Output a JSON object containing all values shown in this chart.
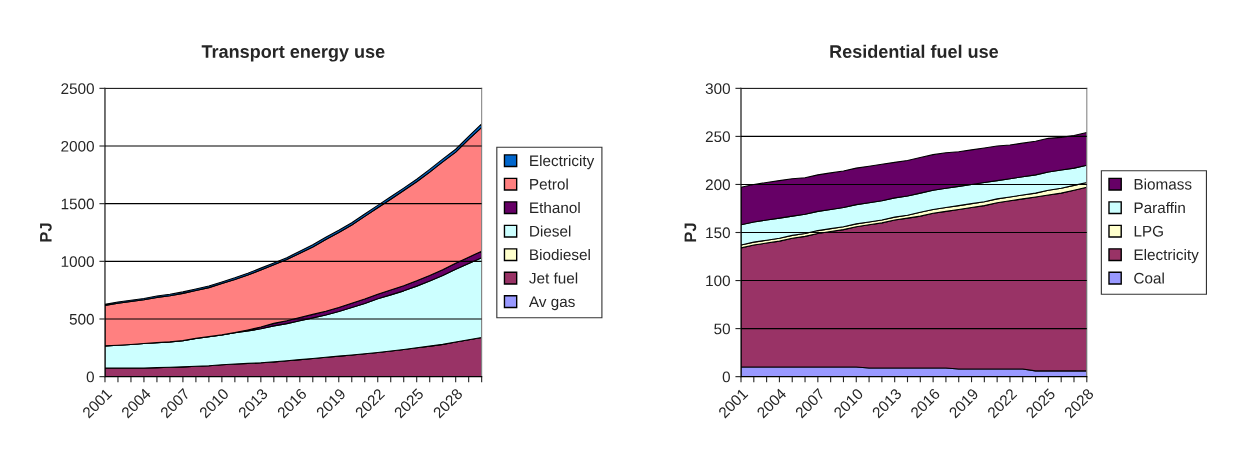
{
  "chart_data": [
    {
      "type": "area",
      "stacked": true,
      "title": "Transport energy use",
      "ylabel": "PJ",
      "ylim": [
        0,
        2500
      ],
      "yticks": [
        0,
        500,
        1000,
        1500,
        2000,
        2500
      ],
      "grid": "y",
      "legend": "right",
      "categories": [
        "2001",
        null,
        null,
        "2004",
        null,
        null,
        "2007",
        null,
        null,
        "2010",
        null,
        null,
        "2013",
        null,
        null,
        "2016",
        null,
        null,
        "2019",
        null,
        null,
        "2022",
        null,
        null,
        "2025",
        null,
        null,
        "2028",
        null,
        null
      ],
      "series": [
        {
          "name": "Av gas",
          "color": "#9999ff",
          "values": [
            null,
            null,
            null,
            null,
            null,
            null,
            null,
            null,
            null,
            null,
            null,
            null,
            null,
            null,
            null,
            null,
            null,
            null,
            null,
            null,
            null,
            null,
            null,
            null,
            null,
            null,
            null,
            null,
            null,
            null
          ]
        },
        {
          "name": "Jet fuel",
          "color": "#993366",
          "values": [
            75,
            75,
            75,
            75,
            78,
            82,
            85,
            90,
            95,
            103,
            110,
            115,
            120,
            128,
            138,
            148,
            158,
            168,
            178,
            188,
            198,
            210,
            222,
            235,
            250,
            265,
            280,
            300,
            320,
            340
          ]
        },
        {
          "name": "Biodiesel",
          "color": "#ffffcc",
          "values": [
            null,
            null,
            null,
            null,
            null,
            null,
            null,
            null,
            null,
            null,
            null,
            null,
            null,
            null,
            null,
            null,
            null,
            null,
            null,
            null,
            null,
            null,
            null,
            null,
            null,
            null,
            null,
            null,
            null,
            null
          ]
        },
        {
          "name": "Diesel",
          "color": "#ccffff",
          "values": [
            192,
            197,
            204,
            212,
            217,
            220,
            227,
            242,
            252,
            259,
            272,
            282,
            295,
            312,
            322,
            337,
            352,
            367,
            387,
            412,
            437,
            465,
            487,
            509,
            535,
            564,
            597,
            632,
            662,
            692
          ]
        },
        {
          "name": "Ethanol",
          "color": "#660066",
          "values": [
            0,
            0,
            0,
            0,
            0,
            0,
            0,
            0,
            0,
            0,
            0,
            8,
            15,
            22,
            25,
            28,
            30,
            32,
            34,
            36,
            38,
            40,
            42,
            44,
            46,
            48,
            50,
            52,
            54,
            56
          ]
        },
        {
          "name": "Petrol",
          "color": "#ff8080",
          "values": [
            350,
            365,
            373,
            380,
            392,
            400,
            410,
            415,
            425,
            445,
            460,
            477,
            495,
            508,
            530,
            557,
            585,
            623,
            651,
            679,
            717,
            750,
            788,
            826,
            859,
            897,
            935,
            963,
            1021,
            1074
          ]
        },
        {
          "name": "Electricity",
          "color": "#0066cc",
          "values": [
            10,
            10,
            11,
            11,
            12,
            12,
            13,
            13,
            14,
            14,
            15,
            15,
            16,
            16,
            17,
            17,
            18,
            18,
            19,
            19,
            20,
            20,
            21,
            21,
            22,
            23,
            24,
            25,
            27,
            30
          ]
        }
      ]
    },
    {
      "type": "area",
      "stacked": true,
      "title": "Residential fuel use",
      "ylabel": "PJ",
      "ylim": [
        0,
        300
      ],
      "yticks": [
        0,
        50,
        100,
        150,
        200,
        250,
        300
      ],
      "grid": "y",
      "legend": "right",
      "categories": [
        "2001",
        null,
        null,
        "2004",
        null,
        null,
        "2007",
        null,
        null,
        "2010",
        null,
        null,
        "2013",
        null,
        null,
        "2016",
        null,
        null,
        "2019",
        null,
        null,
        "2022",
        null,
        null,
        "2025",
        null,
        null,
        "2028"
      ],
      "series": [
        {
          "name": "Coal",
          "color": "#9999ff",
          "values": [
            10,
            10,
            10,
            10,
            10,
            10,
            10,
            10,
            10,
            10,
            9,
            9,
            9,
            9,
            9,
            9,
            9,
            8,
            8,
            8,
            8,
            8,
            8,
            6,
            6,
            6,
            6,
            6
          ]
        },
        {
          "name": "Electricity",
          "color": "#993366",
          "values": [
            124,
            127,
            129,
            131,
            134,
            136,
            139,
            141,
            143,
            146,
            149,
            151,
            154,
            156,
            158,
            161,
            163,
            166,
            168,
            170,
            173,
            175,
            177,
            181,
            183,
            185,
            188,
            191
          ]
        },
        {
          "name": "LPG",
          "color": "#ffffcc",
          "values": [
            3,
            3,
            3,
            3,
            3,
            3,
            3,
            3,
            3,
            3,
            3,
            3,
            3,
            3,
            4,
            4,
            4,
            4,
            4,
            4,
            4,
            4,
            4,
            4,
            5,
            5,
            5,
            5
          ]
        },
        {
          "name": "Paraffin",
          "color": "#ccffff",
          "values": [
            21,
            21,
            21,
            21,
            20,
            20,
            20,
            20,
            20,
            20,
            20,
            20,
            20,
            20,
            20,
            20,
            20,
            20,
            20,
            20,
            19,
            19,
            19,
            19,
            19,
            19,
            18,
            18
          ]
        },
        {
          "name": "Biomass",
          "color": "#660066",
          "values": [
            39,
            39,
            39,
            39,
            39,
            38,
            38,
            38,
            38,
            38,
            38,
            38,
            37,
            37,
            37,
            37,
            37,
            36,
            36,
            36,
            36,
            35,
            35,
            35,
            35,
            34,
            34,
            34
          ]
        }
      ]
    }
  ]
}
